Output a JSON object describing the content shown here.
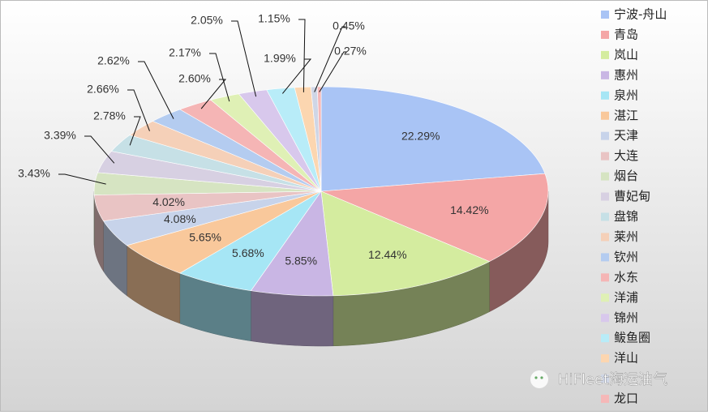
{
  "chart_data": {
    "type": "pie",
    "categories": [
      "宁波-舟山",
      "青岛",
      "岚山",
      "惠州",
      "泉州",
      "湛江",
      "天津",
      "大连",
      "烟台",
      "曹妃甸",
      "盘锦",
      "莱州",
      "钦州",
      "水东",
      "洋浦",
      "锦州",
      "鲅鱼圈",
      "洋山",
      null,
      "龙口"
    ],
    "values": [
      22.29,
      14.42,
      12.44,
      5.85,
      5.68,
      5.65,
      4.08,
      4.02,
      3.43,
      3.39,
      2.78,
      2.66,
      2.62,
      2.6,
      2.17,
      2.05,
      1.99,
      1.15,
      0.45,
      0.27
    ],
    "value_labels": [
      "22.29%",
      "14.42%",
      "12.44%",
      "5.85%",
      "5.68%",
      "5.65%",
      "4.08%",
      "4.02%",
      "3.43%",
      "3.39%",
      "2.78%",
      "2.66%",
      "2.62%",
      "2.60%",
      "2.17%",
      "2.05%",
      "1.99%",
      "1.15%",
      "0.45%",
      "0.27%"
    ],
    "colors": [
      "#a9c4f5",
      "#f4a6a6",
      "#d4ec9f",
      "#c9b6e4",
      "#a6e6f5",
      "#f9c89b",
      "#c7d3ea",
      "#e9c4c4",
      "#d6e4c2",
      "#d7d0e2",
      "#c6e0e6",
      "#f5d0b8",
      "#b4ccf0",
      "#f5b5b5",
      "#dff0b5",
      "#d8c8ec",
      "#b8ecf8",
      "#fcd6b0",
      "#cfd6e6",
      "#f5b8b8"
    ],
    "legend": "right",
    "watermark": "HiFleet海运油气"
  }
}
